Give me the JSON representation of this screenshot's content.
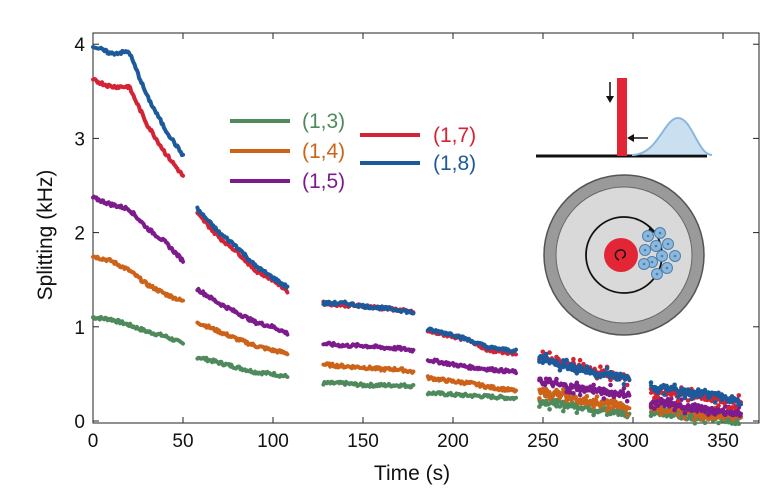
{
  "chart_data": {
    "type": "line",
    "xlabel": "Time (s)",
    "ylabel": "Splitting (kHz)",
    "xlim": [
      0,
      370
    ],
    "ylim": [
      0,
      4.2
    ],
    "xticks": [
      0,
      50,
      100,
      150,
      200,
      250,
      300,
      350
    ],
    "yticks": [
      0,
      1,
      2,
      3,
      4
    ],
    "grid": false,
    "legend_position": "top-center",
    "series": [
      {
        "name": "(1,3)",
        "color": "#4e8a5c",
        "segments": [
          {
            "x": [
              0,
              10,
              20,
              30,
              40,
              50
            ],
            "y": [
              1.1,
              1.08,
              1.02,
              0.95,
              0.9,
              0.82
            ]
          },
          {
            "x": [
              58,
              70,
              80,
              90,
              100,
              108
            ],
            "y": [
              0.68,
              0.62,
              0.57,
              0.52,
              0.5,
              0.47
            ]
          },
          {
            "x": [
              128,
              140,
              150,
              160,
              170,
              178
            ],
            "y": [
              0.4,
              0.4,
              0.38,
              0.38,
              0.38,
              0.37
            ]
          },
          {
            "x": [
              186,
              200,
              210,
              220,
              235
            ],
            "y": [
              0.3,
              0.28,
              0.27,
              0.26,
              0.24
            ]
          },
          {
            "x": [
              248,
              260,
              270,
              280,
              290,
              298
            ],
            "y": [
              0.22,
              0.18,
              0.16,
              0.12,
              0.1,
              0.06
            ]
          },
          {
            "x": [
              310,
              320,
              330,
              340,
              350,
              360
            ],
            "y": [
              0.1,
              0.08,
              0.05,
              0.04,
              0.03,
              0.02
            ]
          }
        ]
      },
      {
        "name": "(1,4)",
        "color": "#cc6319",
        "segments": [
          {
            "x": [
              0,
              10,
              20,
              30,
              40,
              50
            ],
            "y": [
              1.75,
              1.7,
              1.6,
              1.45,
              1.35,
              1.27
            ]
          },
          {
            "x": [
              58,
              70,
              80,
              90,
              100,
              108
            ],
            "y": [
              1.05,
              0.95,
              0.87,
              0.8,
              0.75,
              0.72
            ]
          },
          {
            "x": [
              128,
              140,
              150,
              160,
              170,
              178
            ],
            "y": [
              0.6,
              0.58,
              0.57,
              0.55,
              0.55,
              0.52
            ]
          },
          {
            "x": [
              186,
              200,
              210,
              220,
              235
            ],
            "y": [
              0.46,
              0.42,
              0.4,
              0.36,
              0.32
            ]
          },
          {
            "x": [
              248,
              260,
              270,
              280,
              290,
              298
            ],
            "y": [
              0.3,
              0.28,
              0.22,
              0.2,
              0.18,
              0.12
            ]
          },
          {
            "x": [
              310,
              320,
              330,
              340,
              350,
              360
            ],
            "y": [
              0.15,
              0.12,
              0.1,
              0.08,
              0.05,
              0.05
            ]
          }
        ]
      },
      {
        "name": "(1,5)",
        "color": "#7d1b8c",
        "segments": [
          {
            "x": [
              0,
              10,
              20,
              30,
              40,
              50
            ],
            "y": [
              2.37,
              2.3,
              2.25,
              2.05,
              1.9,
              1.7
            ]
          },
          {
            "x": [
              58,
              70,
              80,
              90,
              100,
              108
            ],
            "y": [
              1.4,
              1.25,
              1.15,
              1.05,
              1.0,
              0.93
            ]
          },
          {
            "x": [
              128,
              140,
              150,
              160,
              170,
              178
            ],
            "y": [
              0.82,
              0.8,
              0.8,
              0.78,
              0.77,
              0.75
            ]
          },
          {
            "x": [
              186,
              200,
              210,
              220,
              235
            ],
            "y": [
              0.65,
              0.6,
              0.57,
              0.55,
              0.52
            ]
          },
          {
            "x": [
              248,
              260,
              270,
              280,
              290,
              298
            ],
            "y": [
              0.42,
              0.38,
              0.35,
              0.32,
              0.3,
              0.28
            ]
          },
          {
            "x": [
              310,
              320,
              330,
              340,
              350,
              360
            ],
            "y": [
              0.2,
              0.18,
              0.15,
              0.12,
              0.1,
              0.08
            ]
          }
        ]
      },
      {
        "name": "(1,7)",
        "color": "#d42335",
        "segments": [
          {
            "x": [
              0,
              10,
              20,
              30,
              40,
              50
            ],
            "y": [
              3.62,
              3.55,
              3.55,
              3.15,
              2.85,
              2.6
            ]
          },
          {
            "x": [
              58,
              70,
              80,
              90,
              100,
              108
            ],
            "y": [
              2.2,
              1.95,
              1.8,
              1.6,
              1.5,
              1.38
            ]
          },
          {
            "x": [
              128,
              140,
              150,
              160,
              170,
              178
            ],
            "y": [
              1.25,
              1.23,
              1.22,
              1.2,
              1.18,
              1.15
            ]
          },
          {
            "x": [
              186,
              200,
              210,
              220,
              235
            ],
            "y": [
              0.95,
              0.9,
              0.85,
              0.75,
              0.72
            ]
          },
          {
            "x": [
              248,
              260,
              270,
              280,
              290,
              298
            ],
            "y": [
              0.68,
              0.62,
              0.58,
              0.52,
              0.48,
              0.45
            ]
          },
          {
            "x": [
              310,
              320,
              330,
              340,
              350,
              360
            ],
            "y": [
              0.32,
              0.3,
              0.28,
              0.25,
              0.22,
              0.2
            ]
          }
        ]
      },
      {
        "name": "(1,8)",
        "color": "#1d5a9b",
        "segments": [
          {
            "x": [
              0,
              10,
              20,
              30,
              40,
              50
            ],
            "y": [
              3.98,
              3.9,
              3.92,
              3.45,
              3.1,
              2.82
            ]
          },
          {
            "x": [
              58,
              70,
              80,
              90,
              100,
              108
            ],
            "y": [
              2.25,
              2.0,
              1.85,
              1.65,
              1.52,
              1.42
            ]
          },
          {
            "x": [
              128,
              140,
              150,
              160,
              170,
              178
            ],
            "y": [
              1.25,
              1.25,
              1.22,
              1.2,
              1.18,
              1.15
            ]
          },
          {
            "x": [
              186,
              200,
              210,
              220,
              235
            ],
            "y": [
              0.97,
              0.92,
              0.85,
              0.78,
              0.74
            ]
          },
          {
            "x": [
              248,
              260,
              270,
              280,
              290,
              298
            ],
            "y": [
              0.68,
              0.6,
              0.55,
              0.5,
              0.48,
              0.45
            ]
          },
          {
            "x": [
              310,
              320,
              330,
              340,
              350,
              360
            ],
            "y": [
              0.35,
              0.35,
              0.3,
              0.28,
              0.25,
              0.2
            ]
          }
        ]
      }
    ],
    "inset": {
      "bar_color": "#e32636",
      "gaussian_color": "#8ab8de",
      "ring_color": "#9a9a9a",
      "disk_color": "#d9d9d9",
      "center_color": "#e32636",
      "particle_color": "#8ab8de"
    }
  }
}
